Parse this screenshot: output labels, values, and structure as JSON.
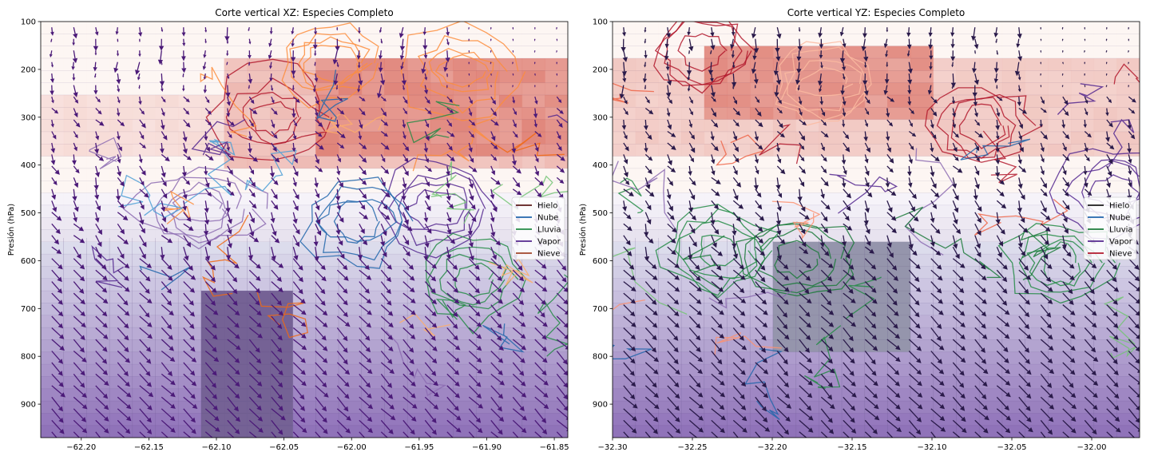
{
  "chart_data": [
    {
      "type": "heatmap",
      "title": "Corte vertical XZ: Especies Completo",
      "xlabel": "",
      "ylabel": "Presión (hPa)",
      "xlim": [
        -62.23,
        -61.84
      ],
      "ylim": [
        970,
        100
      ],
      "y_inverted": true,
      "x_ticks": [
        -62.2,
        -62.15,
        -62.1,
        -62.05,
        -62.0,
        -61.95,
        -61.9,
        -61.85
      ],
      "x_tick_labels": [
        "−62.20",
        "−62.15",
        "−62.10",
        "−62.05",
        "−62.00",
        "−61.95",
        "−61.90",
        "−61.85"
      ],
      "y_ticks": [
        100,
        200,
        300,
        400,
        500,
        600,
        700,
        800,
        900
      ],
      "y_tick_labels": [
        "100",
        "200",
        "300",
        "400",
        "500",
        "600",
        "700",
        "800",
        "900"
      ],
      "legend": {
        "placement": "right",
        "entries": [
          {
            "label": "Hielo",
            "color": "#5b1a1a"
          },
          {
            "label": "Nube",
            "color": "#2166ac"
          },
          {
            "label": "Lluvia",
            "color": "#238b45"
          },
          {
            "label": "Vapor",
            "color": "#54278f"
          },
          {
            "label": "Nieve",
            "color": "#a0462a"
          }
        ]
      },
      "quiver_color": "#4b1a78"
    },
    {
      "type": "heatmap",
      "title": "Corte vertical YZ: Especies Completo",
      "xlabel": "",
      "ylabel": "Presión (hPa)",
      "xlim": [
        -32.3,
        -31.97
      ],
      "ylim": [
        970,
        100
      ],
      "y_inverted": true,
      "x_ticks": [
        -32.3,
        -32.25,
        -32.2,
        -32.15,
        -32.1,
        -32.05,
        -32.0
      ],
      "x_tick_labels": [
        "−32.30",
        "−32.25",
        "−32.20",
        "−32.15",
        "−32.10",
        "−32.05",
        "−32.00"
      ],
      "y_ticks": [
        100,
        200,
        300,
        400,
        500,
        600,
        700,
        800,
        900
      ],
      "y_tick_labels": [
        "100",
        "200",
        "300",
        "400",
        "500",
        "600",
        "700",
        "800",
        "900"
      ],
      "legend": {
        "placement": "right",
        "entries": [
          {
            "label": "Hielo",
            "color": "#1a1a1a"
          },
          {
            "label": "Nube",
            "color": "#2166ac"
          },
          {
            "label": "Lluvia",
            "color": "#1b7a3a"
          },
          {
            "label": "Vapor",
            "color": "#54278f"
          },
          {
            "label": "Nieve",
            "color": "#b2182b"
          }
        ]
      },
      "quiver_color": "#2a1a4a"
    }
  ]
}
